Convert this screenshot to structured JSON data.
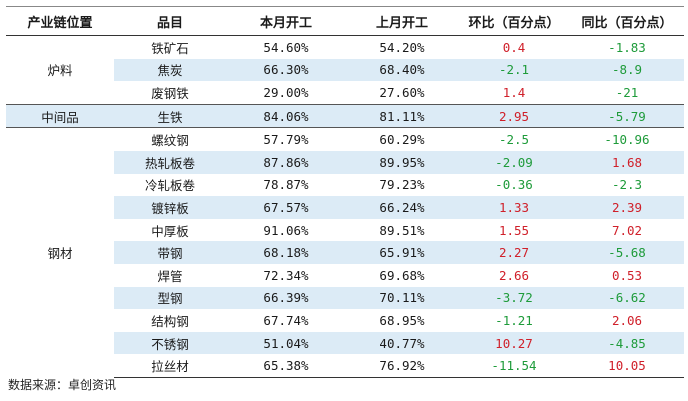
{
  "headers": [
    "产业链位置",
    "品目",
    "本月开工",
    "上月开工",
    "环比（百分点）",
    "同比（百分点）"
  ],
  "groups": [
    {
      "chain": "炉料",
      "rows": [
        {
          "item": "铁矿石",
          "this_month": "54.60%",
          "last_month": "54.20%",
          "mom": "0.4",
          "yoy": "-1.83"
        },
        {
          "item": "焦炭",
          "this_month": "66.30%",
          "last_month": "68.40%",
          "mom": "-2.1",
          "yoy": "-8.9"
        },
        {
          "item": "废钢铁",
          "this_month": "29.00%",
          "last_month": "27.60%",
          "mom": "1.4",
          "yoy": "-21"
        }
      ]
    },
    {
      "chain": "中间品",
      "rows": [
        {
          "item": "生铁",
          "this_month": "84.06%",
          "last_month": "81.11%",
          "mom": "2.95",
          "yoy": "-5.79"
        }
      ]
    },
    {
      "chain": "钢材",
      "rows": [
        {
          "item": "螺纹钢",
          "this_month": "57.79%",
          "last_month": "60.29%",
          "mom": "-2.5",
          "yoy": "-10.96"
        },
        {
          "item": "热轧板卷",
          "this_month": "87.86%",
          "last_month": "89.95%",
          "mom": "-2.09",
          "yoy": "1.68"
        },
        {
          "item": "冷轧板卷",
          "this_month": "78.87%",
          "last_month": "79.23%",
          "mom": "-0.36",
          "yoy": "-2.3"
        },
        {
          "item": "镀锌板",
          "this_month": "67.57%",
          "last_month": "66.24%",
          "mom": "1.33",
          "yoy": "2.39"
        },
        {
          "item": "中厚板",
          "this_month": "91.06%",
          "last_month": "89.51%",
          "mom": "1.55",
          "yoy": "7.02"
        },
        {
          "item": "带钢",
          "this_month": "68.18%",
          "last_month": "65.91%",
          "mom": "2.27",
          "yoy": "-5.68"
        },
        {
          "item": "焊管",
          "this_month": "72.34%",
          "last_month": "69.68%",
          "mom": "2.66",
          "yoy": "0.53"
        },
        {
          "item": "型钢",
          "this_month": "66.39%",
          "last_month": "70.11%",
          "mom": "-3.72",
          "yoy": "-6.62"
        },
        {
          "item": "结构钢",
          "this_month": "67.74%",
          "last_month": "68.95%",
          "mom": "-1.21",
          "yoy": "2.06"
        },
        {
          "item": "不锈钢",
          "this_month": "51.04%",
          "last_month": "40.77%",
          "mom": "10.27",
          "yoy": "-4.85"
        },
        {
          "item": "拉丝材",
          "this_month": "65.38%",
          "last_month": "76.92%",
          "mom": "-11.54",
          "yoy": "10.05"
        }
      ]
    }
  ],
  "source": "数据来源：卓创资讯",
  "colors": {
    "positive": "#d0202a",
    "negative": "#1e9b3a",
    "shade": "#dcebf6"
  }
}
